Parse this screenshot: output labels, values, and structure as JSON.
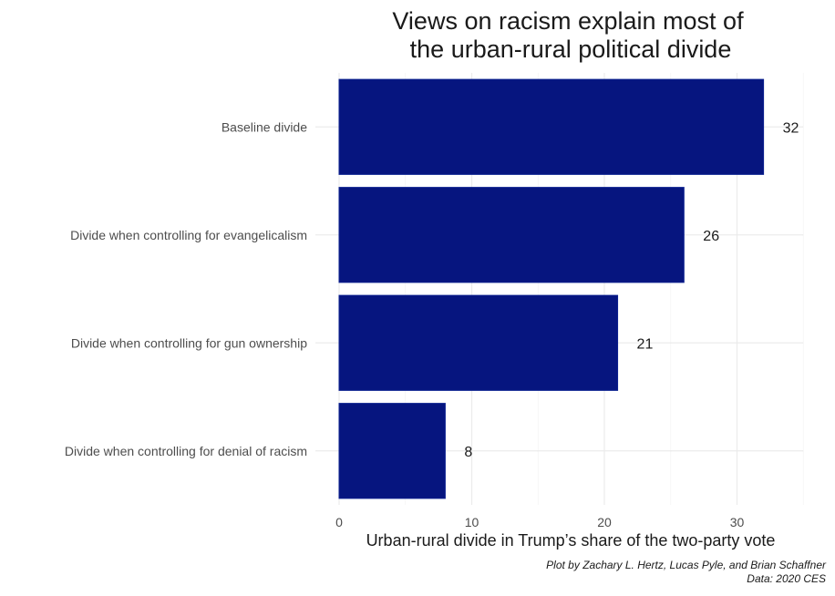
{
  "chart_data": {
    "type": "bar",
    "orientation": "horizontal",
    "title": [
      "Views on racism explain most of",
      "the urban-rural political divide"
    ],
    "categories": [
      "Baseline divide",
      "Divide when controlling for evangelicalism",
      "Divide when controlling for gun ownership",
      "Divide when controlling for denial of racism"
    ],
    "values": [
      32,
      26,
      21,
      8
    ],
    "data_labels": [
      "32",
      "26",
      "21",
      "8"
    ],
    "xlabel": "Urban-rural divide in Trump’s share of the two-party vote",
    "ylabel": "",
    "xlim": [
      0,
      35
    ],
    "x_ticks": [
      0,
      10,
      20,
      30
    ],
    "x_tick_labels": [
      "0",
      "10",
      "20",
      "30"
    ],
    "grid": true,
    "legend": "none",
    "caption": [
      "Plot by Zachary L. Hertz, Lucas Pyle, and Brian Schaffner",
      "Data: 2020 CES"
    ],
    "colors": {
      "bar_fill": "#06157f",
      "bar_outline": "#0a1f8f"
    }
  }
}
